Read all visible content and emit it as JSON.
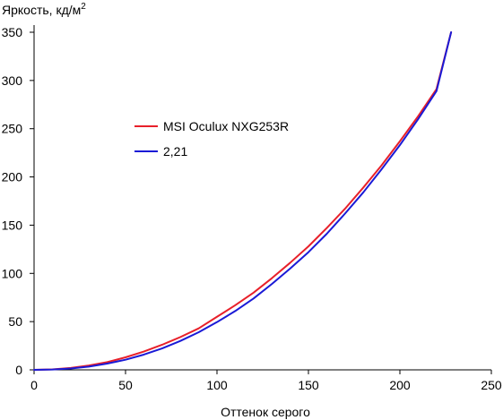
{
  "chart_data": {
    "type": "line",
    "ylabel_main": "Яркость, кд/м",
    "ylabel_sup": "2",
    "xlabel": "Оттенок серого",
    "xlim": [
      0,
      250
    ],
    "ylim": [
      0,
      350
    ],
    "xticks": [
      "0",
      "50",
      "100",
      "150",
      "200",
      "250"
    ],
    "yticks": [
      "0",
      "50",
      "100",
      "150",
      "200",
      "250",
      "300",
      "350"
    ],
    "grid": false,
    "legend_position": "upper-left-center",
    "series": [
      {
        "name": "MSI Oculux NXG253R",
        "color": "#e8202a",
        "x": [
          0,
          10,
          20,
          30,
          40,
          50,
          60,
          70,
          80,
          90,
          100,
          110,
          120,
          130,
          140,
          150,
          160,
          170,
          180,
          190,
          200,
          210,
          220,
          228
        ],
        "y": [
          0,
          0.5,
          2,
          4.5,
          8,
          13,
          19,
          26,
          34,
          43,
          55,
          67,
          80,
          95,
          111,
          128,
          147,
          167,
          189,
          212,
          237,
          263,
          291,
          350
        ]
      },
      {
        "name": "2,21",
        "color": "#1a1ad6",
        "x": [
          0,
          10,
          20,
          30,
          40,
          50,
          60,
          70,
          80,
          90,
          100,
          110,
          120,
          130,
          140,
          150,
          160,
          170,
          180,
          190,
          200,
          210,
          220,
          228
        ],
        "y": [
          0,
          0.3,
          1.4,
          3.4,
          6.5,
          10.5,
          15.8,
          22.2,
          30,
          39,
          49.5,
          61,
          74,
          89,
          105,
          122,
          141,
          162,
          184,
          208,
          233,
          260,
          289,
          350
        ]
      }
    ]
  }
}
